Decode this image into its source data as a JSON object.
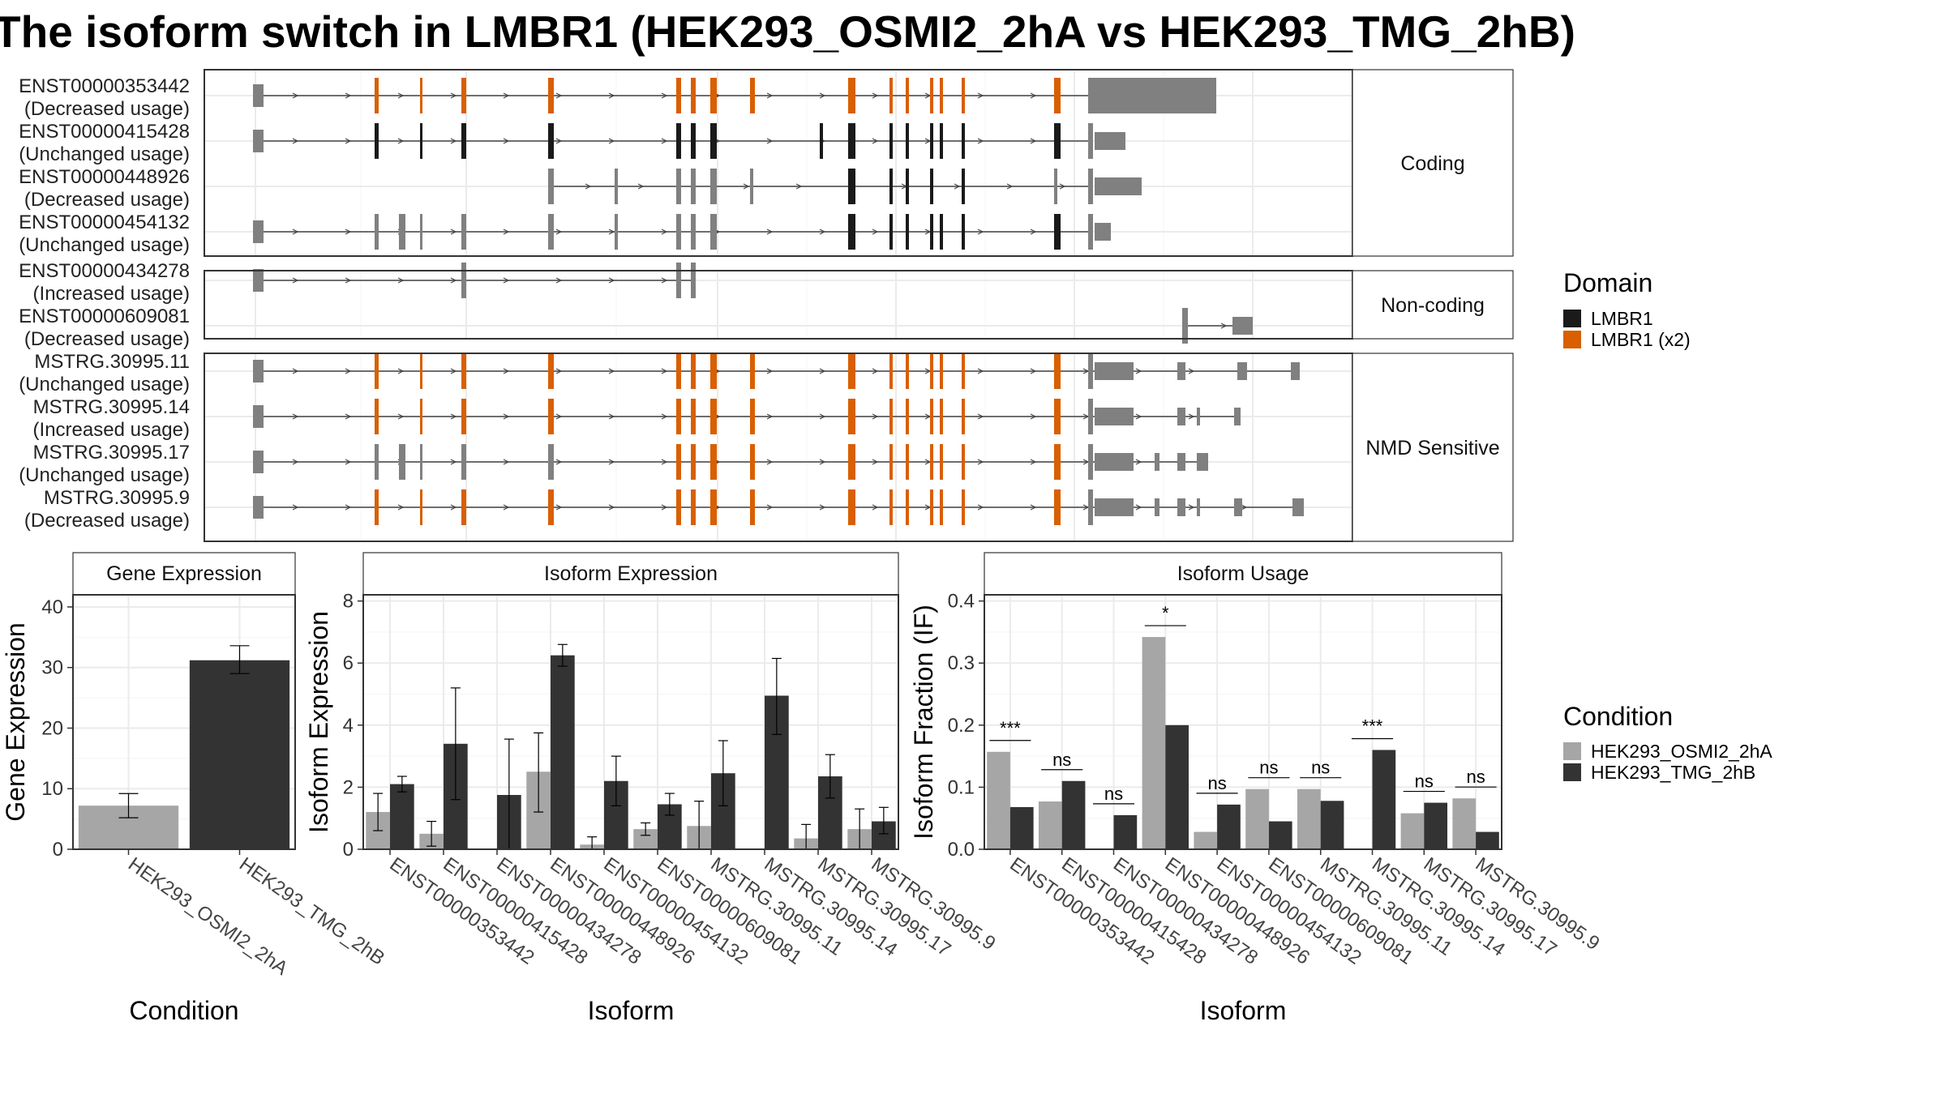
{
  "title": "The isoform switch in LMBR1 (HEK293_OSMI2_2hA vs HEK293_TMG_2hB)",
  "colors": {
    "domain_lmbr1": "#1a1a1a",
    "domain_lmbr1_x2": "#d95f02",
    "exon_plain": "#808080",
    "cond_a": "#a6a6a6",
    "cond_b": "#333333",
    "grid": "#ebebeb"
  },
  "transcript_panel": {
    "groups": [
      {
        "label": "Coding",
        "transcripts": [
          {
            "id": "ENST00000353442",
            "usage": "(Decreased usage)"
          },
          {
            "id": "ENST00000415428",
            "usage": "(Unchanged usage)"
          },
          {
            "id": "ENST00000448926",
            "usage": "(Decreased usage)"
          },
          {
            "id": "ENST00000454132",
            "usage": "(Unchanged usage)"
          }
        ]
      },
      {
        "label": "Non-coding",
        "transcripts": [
          {
            "id": "ENST00000434278",
            "usage": "(Increased usage)"
          },
          {
            "id": "ENST00000609081",
            "usage": "(Decreased usage)"
          }
        ]
      },
      {
        "label": "NMD Sensitive",
        "transcripts": [
          {
            "id": "MSTRG.30995.11",
            "usage": "(Unchanged usage)"
          },
          {
            "id": "MSTRG.30995.14",
            "usage": "(Increased usage)"
          },
          {
            "id": "MSTRG.30995.17",
            "usage": "(Unchanged usage)"
          },
          {
            "id": "MSTRG.30995.9",
            "usage": "(Decreased usage)"
          }
        ]
      }
    ]
  },
  "legend_domain": {
    "title": "Domain",
    "items": [
      "LMBR1",
      "LMBR1 (x2)"
    ]
  },
  "legend_condition": {
    "title": "Condition",
    "items": [
      "HEK293_OSMI2_2hA",
      "HEK293_TMG_2hB"
    ]
  },
  "chart_data": [
    {
      "type": "bar",
      "title": "Gene Expression",
      "xlabel": "Condition",
      "ylabel": "Gene Expression",
      "categories": [
        "HEK293_OSMI2_2hA",
        "HEK293_TMG_2hB"
      ],
      "values": [
        7.2,
        31.2
      ],
      "errors": [
        [
          5.2,
          9.2
        ],
        [
          29.0,
          33.6
        ]
      ],
      "ylim": [
        0,
        42
      ],
      "yticks": [
        0,
        10,
        20,
        30,
        40
      ]
    },
    {
      "type": "bar",
      "title": "Isoform Expression",
      "xlabel": "Isoform",
      "ylabel": "Isoform Expression",
      "categories": [
        "ENST00000353442",
        "ENST00000415428",
        "ENST00000434278",
        "ENST00000448926",
        "ENST00000454132",
        "ENST00000609081",
        "MSTRG.30995.11",
        "MSTRG.30995.14",
        "MSTRG.30995.17",
        "MSTRG.30995.9"
      ],
      "series": [
        {
          "name": "HEK293_OSMI2_2hA",
          "values": [
            1.2,
            0.5,
            0.0,
            2.5,
            0.15,
            0.65,
            0.75,
            0.0,
            0.35,
            0.65
          ],
          "errors": [
            [
              0.6,
              1.8
            ],
            [
              0.1,
              0.9
            ],
            [
              0,
              0
            ],
            [
              1.2,
              3.75
            ],
            [
              0,
              0.4
            ],
            [
              0.45,
              0.85
            ],
            [
              0,
              1.55
            ],
            [
              0,
              0
            ],
            [
              0,
              0.8
            ],
            [
              0,
              1.3
            ]
          ]
        },
        {
          "name": "HEK293_TMG_2hB",
          "values": [
            2.1,
            3.4,
            1.75,
            6.25,
            2.2,
            1.45,
            2.45,
            4.95,
            2.35,
            0.9
          ],
          "errors": [
            [
              1.85,
              2.35
            ],
            [
              1.6,
              5.2
            ],
            [
              0,
              3.55
            ],
            [
              5.9,
              6.6
            ],
            [
              1.4,
              3.0
            ],
            [
              1.1,
              1.8
            ],
            [
              1.4,
              3.5
            ],
            [
              3.7,
              6.15
            ],
            [
              1.65,
              3.05
            ],
            [
              0.5,
              1.35
            ]
          ]
        }
      ],
      "ylim": [
        0,
        8.2
      ],
      "yticks": [
        0,
        2,
        4,
        6,
        8
      ]
    },
    {
      "type": "bar",
      "title": "Isoform Usage",
      "xlabel": "Isoform",
      "ylabel": "Isoform Fraction (IF)",
      "categories": [
        "ENST00000353442",
        "ENST00000415428",
        "ENST00000434278",
        "ENST00000448926",
        "ENST00000454132",
        "ENST00000609081",
        "MSTRG.30995.11",
        "MSTRG.30995.14",
        "MSTRG.30995.17",
        "MSTRG.30995.9"
      ],
      "series": [
        {
          "name": "HEK293_OSMI2_2hA",
          "values": [
            0.157,
            0.077,
            0.0,
            0.342,
            0.028,
            0.097,
            0.097,
            0.0,
            0.058,
            0.082
          ]
        },
        {
          "name": "HEK293_TMG_2hB",
          "values": [
            0.068,
            0.11,
            0.055,
            0.2,
            0.072,
            0.045,
            0.078,
            0.16,
            0.075,
            0.028
          ]
        }
      ],
      "significance": [
        "***",
        "ns",
        "ns",
        "*",
        "ns",
        "ns",
        "ns",
        "***",
        "ns",
        "ns"
      ],
      "ylim": [
        0,
        0.41
      ],
      "yticks": [
        "0.0",
        "0.1",
        "0.2",
        "0.3",
        "0.4"
      ]
    }
  ]
}
